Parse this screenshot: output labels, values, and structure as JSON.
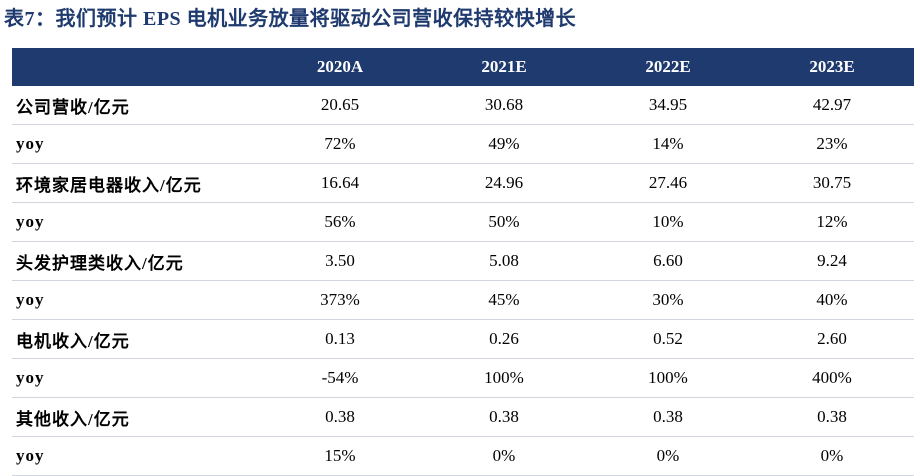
{
  "title": "表7：我们预计 EPS 电机业务放量将驱动公司营收保持较快增长",
  "table": {
    "headers": [
      "",
      "2020A",
      "2021E",
      "2022E",
      "2023E"
    ],
    "rows": [
      {
        "label": "公司营收/亿元",
        "values": [
          "20.65",
          "30.68",
          "34.95",
          "42.97"
        ]
      },
      {
        "label": "yoy",
        "values": [
          "72%",
          "49%",
          "14%",
          "23%"
        ]
      },
      {
        "label": "环境家居电器收入/亿元",
        "values": [
          "16.64",
          "24.96",
          "27.46",
          "30.75"
        ]
      },
      {
        "label": "yoy",
        "values": [
          "56%",
          "50%",
          "10%",
          "12%"
        ]
      },
      {
        "label": "头发护理类收入/亿元",
        "values": [
          "3.50",
          "5.08",
          "6.60",
          "9.24"
        ]
      },
      {
        "label": "yoy",
        "values": [
          "373%",
          "45%",
          "30%",
          "40%"
        ]
      },
      {
        "label": "电机收入/亿元",
        "values": [
          "0.13",
          "0.26",
          "0.52",
          "2.60"
        ]
      },
      {
        "label": "yoy",
        "values": [
          "-54%",
          "100%",
          "100%",
          "400%"
        ]
      },
      {
        "label": "其他收入/亿元",
        "values": [
          "0.38",
          "0.38",
          "0.38",
          "0.38"
        ]
      },
      {
        "label": "yoy",
        "values": [
          "15%",
          "0%",
          "0%",
          "0%"
        ]
      }
    ]
  },
  "colors": {
    "title": "#1f3a6e",
    "header_bg": "#1f3a6e",
    "header_text": "#ffffff"
  }
}
